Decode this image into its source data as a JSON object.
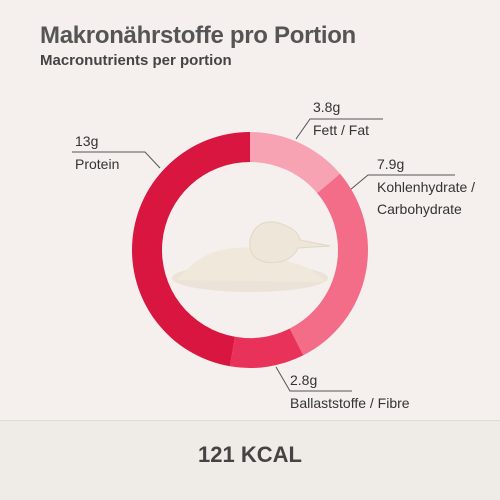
{
  "chart_data": {
    "type": "donut",
    "title": "Makronährstoffe pro Portion",
    "subtitle": "Macronutrients per portion",
    "categories": [
      "Fett / Fat",
      "Kohlenhydrate / Carbohydrate",
      "Ballaststoffe / Fibre",
      "Protein"
    ],
    "values": [
      3.8,
      7.9,
      2.8,
      13
    ],
    "value_labels": [
      "3.8g",
      "7.9g",
      "2.8g",
      "13g"
    ],
    "colors": [
      "#f7a3b3",
      "#f36d89",
      "#e9325a",
      "#d8163f"
    ],
    "total_label": "121 KCAL"
  }
}
